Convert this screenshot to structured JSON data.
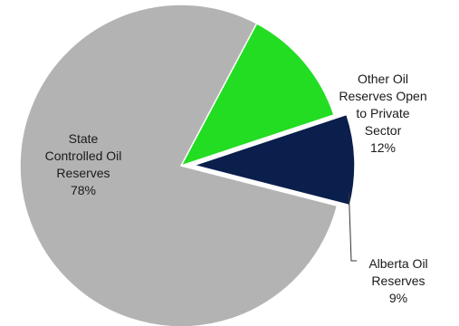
{
  "chart_data": {
    "type": "pie",
    "title": "",
    "unit": "%",
    "slices": [
      {
        "label": [
          "Other Oil",
          "Reserves Open",
          "to Private",
          "Sector"
        ],
        "value": 12,
        "display": "12%",
        "color": "#22dd22",
        "exploded": false
      },
      {
        "label": [
          "Alberta Oil",
          "Reserves"
        ],
        "value": 9,
        "display": "9%",
        "color": "#0b1f4d",
        "exploded": true
      },
      {
        "label": [
          "State",
          "Controlled Oil",
          "Reserves"
        ],
        "value": 78,
        "display": "78%",
        "color": "#b3b3b3",
        "exploded": false
      }
    ]
  }
}
